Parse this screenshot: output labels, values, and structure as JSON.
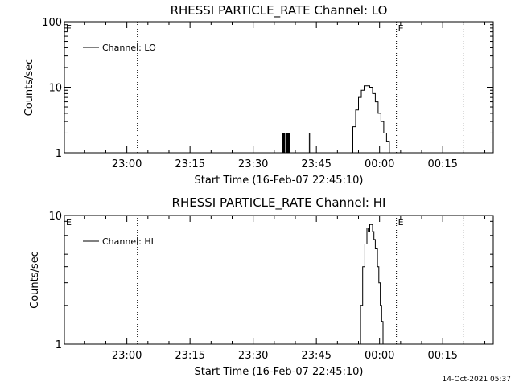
{
  "chart_data": [
    {
      "type": "line",
      "title": "RHESSI PARTICLE_RATE Channel: LO",
      "xlabel": "Start Time (16-Feb-07 22:45:10)",
      "ylabel": "Counts/sec",
      "yscale": "log",
      "xlim": [
        "22:45:10",
        "00:27:00"
      ],
      "ylim": [
        1,
        100
      ],
      "x_tick_labels": [
        "23:00",
        "23:15",
        "23:30",
        "23:45",
        "00:00",
        "00:15"
      ],
      "y_tick_labels": [
        "1",
        "10",
        "100"
      ],
      "legend": {
        "placement": "top-left",
        "entries": [
          "Channel: LO"
        ]
      },
      "event_markers": [
        {
          "time": "23:02:30",
          "label": ""
        },
        {
          "time": "00:04:00",
          "label": "E"
        },
        {
          "time": "00:20:00",
          "label": ""
        }
      ],
      "corner_label": "E",
      "series": [
        {
          "name": "Channel: LO",
          "x": [
            "23:36:50",
            "23:37:00",
            "23:37:10",
            "23:37:20",
            "23:37:30",
            "23:37:40",
            "23:37:50",
            "23:38:00",
            "23:38:10",
            "23:38:20",
            "23:38:30",
            "23:38:40",
            "23:38:50",
            "23:43:00",
            "23:43:20",
            "23:43:40",
            "23:44:00",
            "23:53:00",
            "23:53:40",
            "23:54:20",
            "23:55:00",
            "23:55:40",
            "23:56:20",
            "23:57:00",
            "23:57:40",
            "23:58:20",
            "23:59:00",
            "23:59:40",
            "00:00:20",
            "00:01:00",
            "00:01:40",
            "00:02:00",
            "00:02:20"
          ],
          "y": [
            1,
            2,
            1,
            2,
            1,
            1,
            2,
            1,
            2,
            1,
            2,
            1,
            1,
            1,
            2,
            1,
            1,
            1,
            2.5,
            4.5,
            7,
            9,
            10.5,
            10.5,
            10,
            8,
            6,
            4,
            3,
            2,
            1.5,
            1.5,
            1
          ]
        }
      ]
    },
    {
      "type": "line",
      "title": "RHESSI PARTICLE_RATE Channel: HI",
      "xlabel": "Start Time (16-Feb-07 22:45:10)",
      "ylabel": "Counts/sec",
      "yscale": "log",
      "xlim": [
        "22:45:10",
        "00:27:00"
      ],
      "ylim": [
        1,
        10
      ],
      "x_tick_labels": [
        "23:00",
        "23:15",
        "23:30",
        "23:45",
        "00:00",
        "00:15"
      ],
      "y_tick_labels": [
        "1",
        "10"
      ],
      "legend": {
        "placement": "top-left",
        "entries": [
          "Channel: HI"
        ]
      },
      "event_markers": [
        {
          "time": "23:02:30",
          "label": ""
        },
        {
          "time": "00:04:00",
          "label": "E"
        },
        {
          "time": "00:20:00",
          "label": ""
        }
      ],
      "corner_label": "E",
      "series": [
        {
          "name": "Channel: HI",
          "x": [
            "23:55:00",
            "23:55:30",
            "23:56:00",
            "23:56:30",
            "23:57:00",
            "23:57:20",
            "23:57:40",
            "23:58:00",
            "23:58:20",
            "23:58:40",
            "23:59:00",
            "23:59:30",
            "23:59:50",
            "00:00:10",
            "00:00:30",
            "00:00:50"
          ],
          "y": [
            1,
            2,
            4,
            6,
            8,
            7.5,
            8.5,
            8.5,
            7.5,
            6.5,
            5.5,
            4,
            3,
            2,
            1.5,
            1
          ]
        }
      ]
    }
  ],
  "footer": {
    "timestamp": "14-Oct-2021 05:37"
  }
}
